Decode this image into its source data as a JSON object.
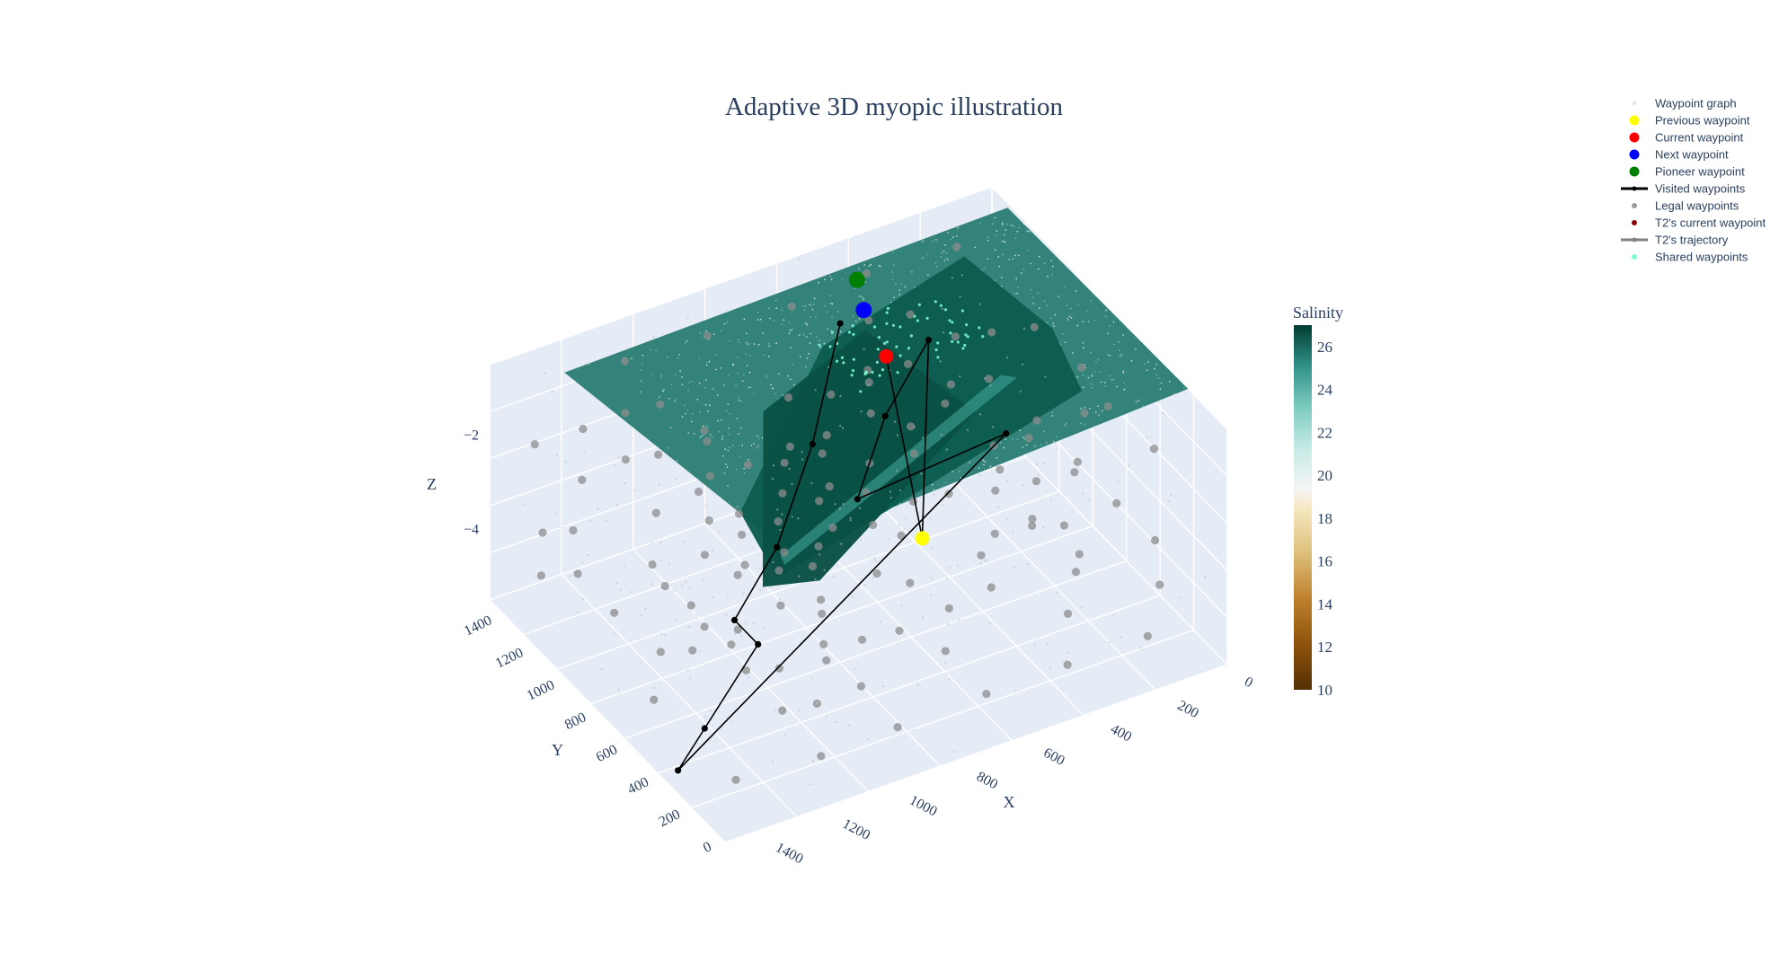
{
  "chart_data": {
    "type": "scatter3d",
    "title": "Adaptive 3D myopic illustration",
    "axes": {
      "x": {
        "label": "X",
        "ticks": [
          "0",
          "200",
          "400",
          "600",
          "800",
          "1000",
          "1200",
          "1400"
        ],
        "range": [
          0,
          1500
        ]
      },
      "y": {
        "label": "Y",
        "ticks": [
          "0",
          "200",
          "400",
          "600",
          "800",
          "1000",
          "1200",
          "1400"
        ],
        "range": [
          0,
          1500
        ]
      },
      "z": {
        "label": "Z",
        "ticks": [
          "−2",
          "−4"
        ],
        "range": [
          -5.5,
          -0.5
        ]
      }
    },
    "colorbar": {
      "title": "Salinity",
      "ticks": [
        "26",
        "24",
        "22",
        "20",
        "18",
        "16",
        "14",
        "12",
        "10"
      ],
      "range": [
        10,
        27
      ]
    },
    "legend": {
      "placement": "top-right",
      "items": [
        {
          "label": "Waypoint graph",
          "symbol": "dot-faint",
          "color": "#dde3ea"
        },
        {
          "label": "Previous waypoint",
          "symbol": "dot",
          "color": "#ffff00"
        },
        {
          "label": "Current waypoint",
          "symbol": "dot",
          "color": "#ff0000"
        },
        {
          "label": "Next waypoint",
          "symbol": "dot",
          "color": "#0000ff"
        },
        {
          "label": "Pioneer waypoint",
          "symbol": "dot",
          "color": "#008000"
        },
        {
          "label": "Visited waypoints",
          "symbol": "line-dot",
          "color": "#000000"
        },
        {
          "label": "Legal waypoints",
          "symbol": "dot-small",
          "color": "#999999"
        },
        {
          "label": "T2's current waypoint",
          "symbol": "dot-small",
          "color": "#8b0000"
        },
        {
          "label": "T2's trajectory",
          "symbol": "line-dot",
          "color": "#808080"
        },
        {
          "label": "Shared waypoints",
          "symbol": "dot-small",
          "color": "#7fffd4"
        }
      ]
    },
    "special_waypoints": {
      "previous": {
        "x": 700,
        "y": 450,
        "z": -2.6
      },
      "current": {
        "x": 550,
        "y": 1000,
        "z": -1.0
      },
      "next": {
        "x": 500,
        "y": 1250,
        "z": -1.0
      },
      "pioneer": {
        "x": 450,
        "y": 1400,
        "z": -1.0
      }
    },
    "visited_path": [
      [
        500,
        1400,
        -1.8
      ],
      [
        700,
        1150,
        -3.0
      ],
      [
        900,
        950,
        -4.0
      ],
      [
        1050,
        900,
        -5.0
      ],
      [
        1050,
        750,
        -5.0
      ],
      [
        1350,
        450,
        -5.0
      ],
      [
        1500,
        300,
        -5.0
      ],
      [
        450,
        450,
        -1.0
      ],
      [
        800,
        650,
        -2.2
      ],
      [
        600,
        900,
        -1.8
      ],
      [
        400,
        1050,
        -1.2
      ],
      [
        700,
        450,
        -2.6
      ],
      [
        550,
        1000,
        -1.0
      ]
    ],
    "grid_steps": {
      "x": 7,
      "y": 7,
      "z": 5
    }
  }
}
